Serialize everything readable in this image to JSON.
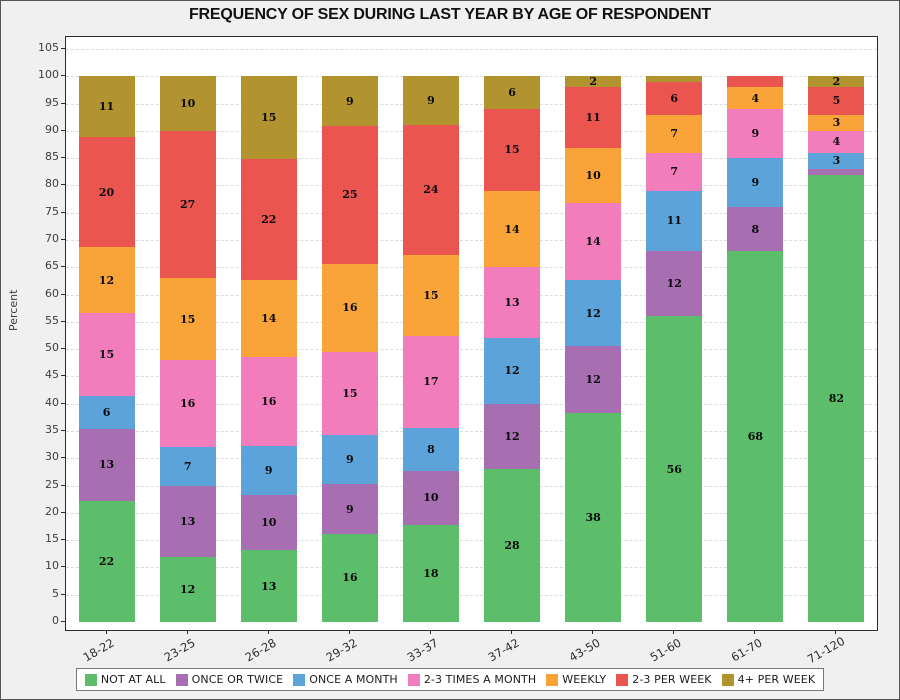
{
  "title": "FREQUENCY OF SEX DURING LAST YEAR BY AGE OF RESPONDENT",
  "chart_data": {
    "type": "bar",
    "stacked": true,
    "title": "FREQUENCY OF SEX DURING LAST YEAR BY AGE OF RESPONDENT",
    "xlabel": "",
    "ylabel": "Percent",
    "ylim": [
      0,
      105
    ],
    "ytick_step": 5,
    "grid": "horizontal-dashed",
    "legend_position": "bottom",
    "x_label_rotation": -30,
    "categories": [
      "18-22",
      "23-25",
      "26-28",
      "29-32",
      "33-37",
      "37-42",
      "43-50",
      "51-60",
      "61-70",
      "71-120"
    ],
    "series": [
      {
        "name": "NOT AT ALL",
        "color": "#5cbd6b",
        "values": [
          22,
          12,
          13,
          16,
          18,
          28,
          38,
          56,
          68,
          82
        ],
        "labels": [
          "22",
          "12",
          "13",
          "16",
          "18",
          "28",
          "38",
          "56",
          "68",
          "82"
        ]
      },
      {
        "name": "ONCE OR TWICE",
        "color": "#a76fb2",
        "values": [
          13,
          13,
          10,
          9,
          10,
          12,
          12,
          12,
          8,
          1
        ],
        "labels": [
          "13",
          "13",
          "10",
          "9",
          "10",
          "12",
          "12",
          "12",
          "8",
          ""
        ]
      },
      {
        "name": "ONCE A MONTH",
        "color": "#5ba3d9",
        "values": [
          6,
          7,
          9,
          9,
          8,
          12,
          12,
          11,
          9,
          3
        ],
        "labels": [
          "6",
          "7",
          "9",
          "9",
          "8",
          "12",
          "12",
          "11",
          "9",
          "3"
        ]
      },
      {
        "name": "2-3 TIMES A MONTH",
        "color": "#f17dbc",
        "values": [
          15,
          16,
          16,
          15,
          17,
          13,
          14,
          7,
          9,
          4
        ],
        "labels": [
          "15",
          "16",
          "16",
          "15",
          "17",
          "13",
          "14",
          "7",
          "9",
          "4"
        ]
      },
      {
        "name": "WEEKLY",
        "color": "#f8a438",
        "values": [
          12,
          15,
          14,
          16,
          15,
          14,
          10,
          7,
          4,
          3
        ],
        "labels": [
          "12",
          "15",
          "14",
          "16",
          "15",
          "14",
          "10",
          "7",
          "4",
          "3"
        ]
      },
      {
        "name": "2-3 PER WEEK",
        "color": "#ea5550",
        "values": [
          20,
          27,
          22,
          25,
          24,
          15,
          11,
          6,
          2,
          5
        ],
        "labels": [
          "20",
          "27",
          "22",
          "25",
          "24",
          "15",
          "11",
          "6",
          "",
          "5"
        ]
      },
      {
        "name": "4+ PER WEEK",
        "color": "#b19430",
        "values": [
          11,
          10,
          15,
          9,
          9,
          6,
          2,
          1,
          0,
          2
        ],
        "labels": [
          "11",
          "10",
          "15",
          "9",
          "9",
          "6",
          "2",
          "",
          "",
          "2"
        ]
      }
    ]
  }
}
